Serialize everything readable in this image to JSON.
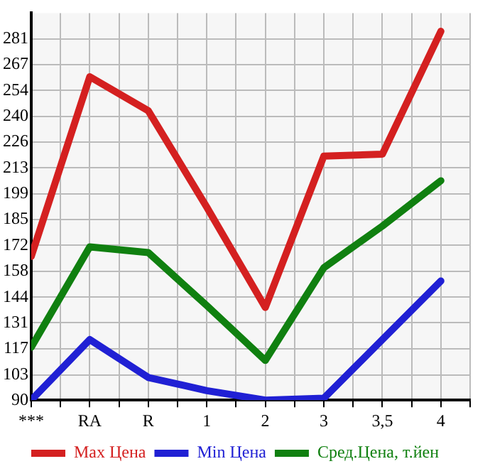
{
  "chart_data": {
    "type": "line",
    "categories": [
      "***",
      "RA",
      "R",
      "1",
      "2",
      "3",
      "3,5",
      "4"
    ],
    "series": [
      {
        "name": "Max Цена",
        "color": "#d42020",
        "values": [
          166,
          261,
          243,
          192,
          139,
          219,
          220,
          285
        ]
      },
      {
        "name": "Min Цена",
        "color": "#2020d4",
        "values": [
          90,
          122,
          102,
          95,
          90,
          91,
          122,
          153
        ]
      },
      {
        "name": "Сред.Цена, т.йен",
        "color": "#108010",
        "values": [
          118,
          171,
          168,
          140,
          111,
          160,
          182,
          206
        ]
      }
    ],
    "ylim": [
      90,
      294.64
    ],
    "yticks": [
      90,
      {
        "value": 103.4,
        "label": "103"
      },
      {
        "value": 117.29,
        "label": "117"
      },
      {
        "value": 130.93,
        "label": "131"
      },
      {
        "value": 144.4,
        "label": "144"
      },
      {
        "value": 158.21,
        "label": "158"
      },
      {
        "value": 171.86,
        "label": "172"
      },
      {
        "value": 185.5,
        "label": "185"
      },
      {
        "value": 199.14,
        "label": "199"
      },
      {
        "value": 212.79,
        "label": "213"
      },
      {
        "value": 226.43,
        "label": "226"
      },
      {
        "value": 240.07,
        "label": "240"
      },
      {
        "value": 253.71,
        "label": "254"
      },
      {
        "value": 267.36,
        "label": "267"
      },
      281
    ],
    "grid": true,
    "legend": "bottom",
    "marker": "none",
    "line_style": "solid"
  }
}
